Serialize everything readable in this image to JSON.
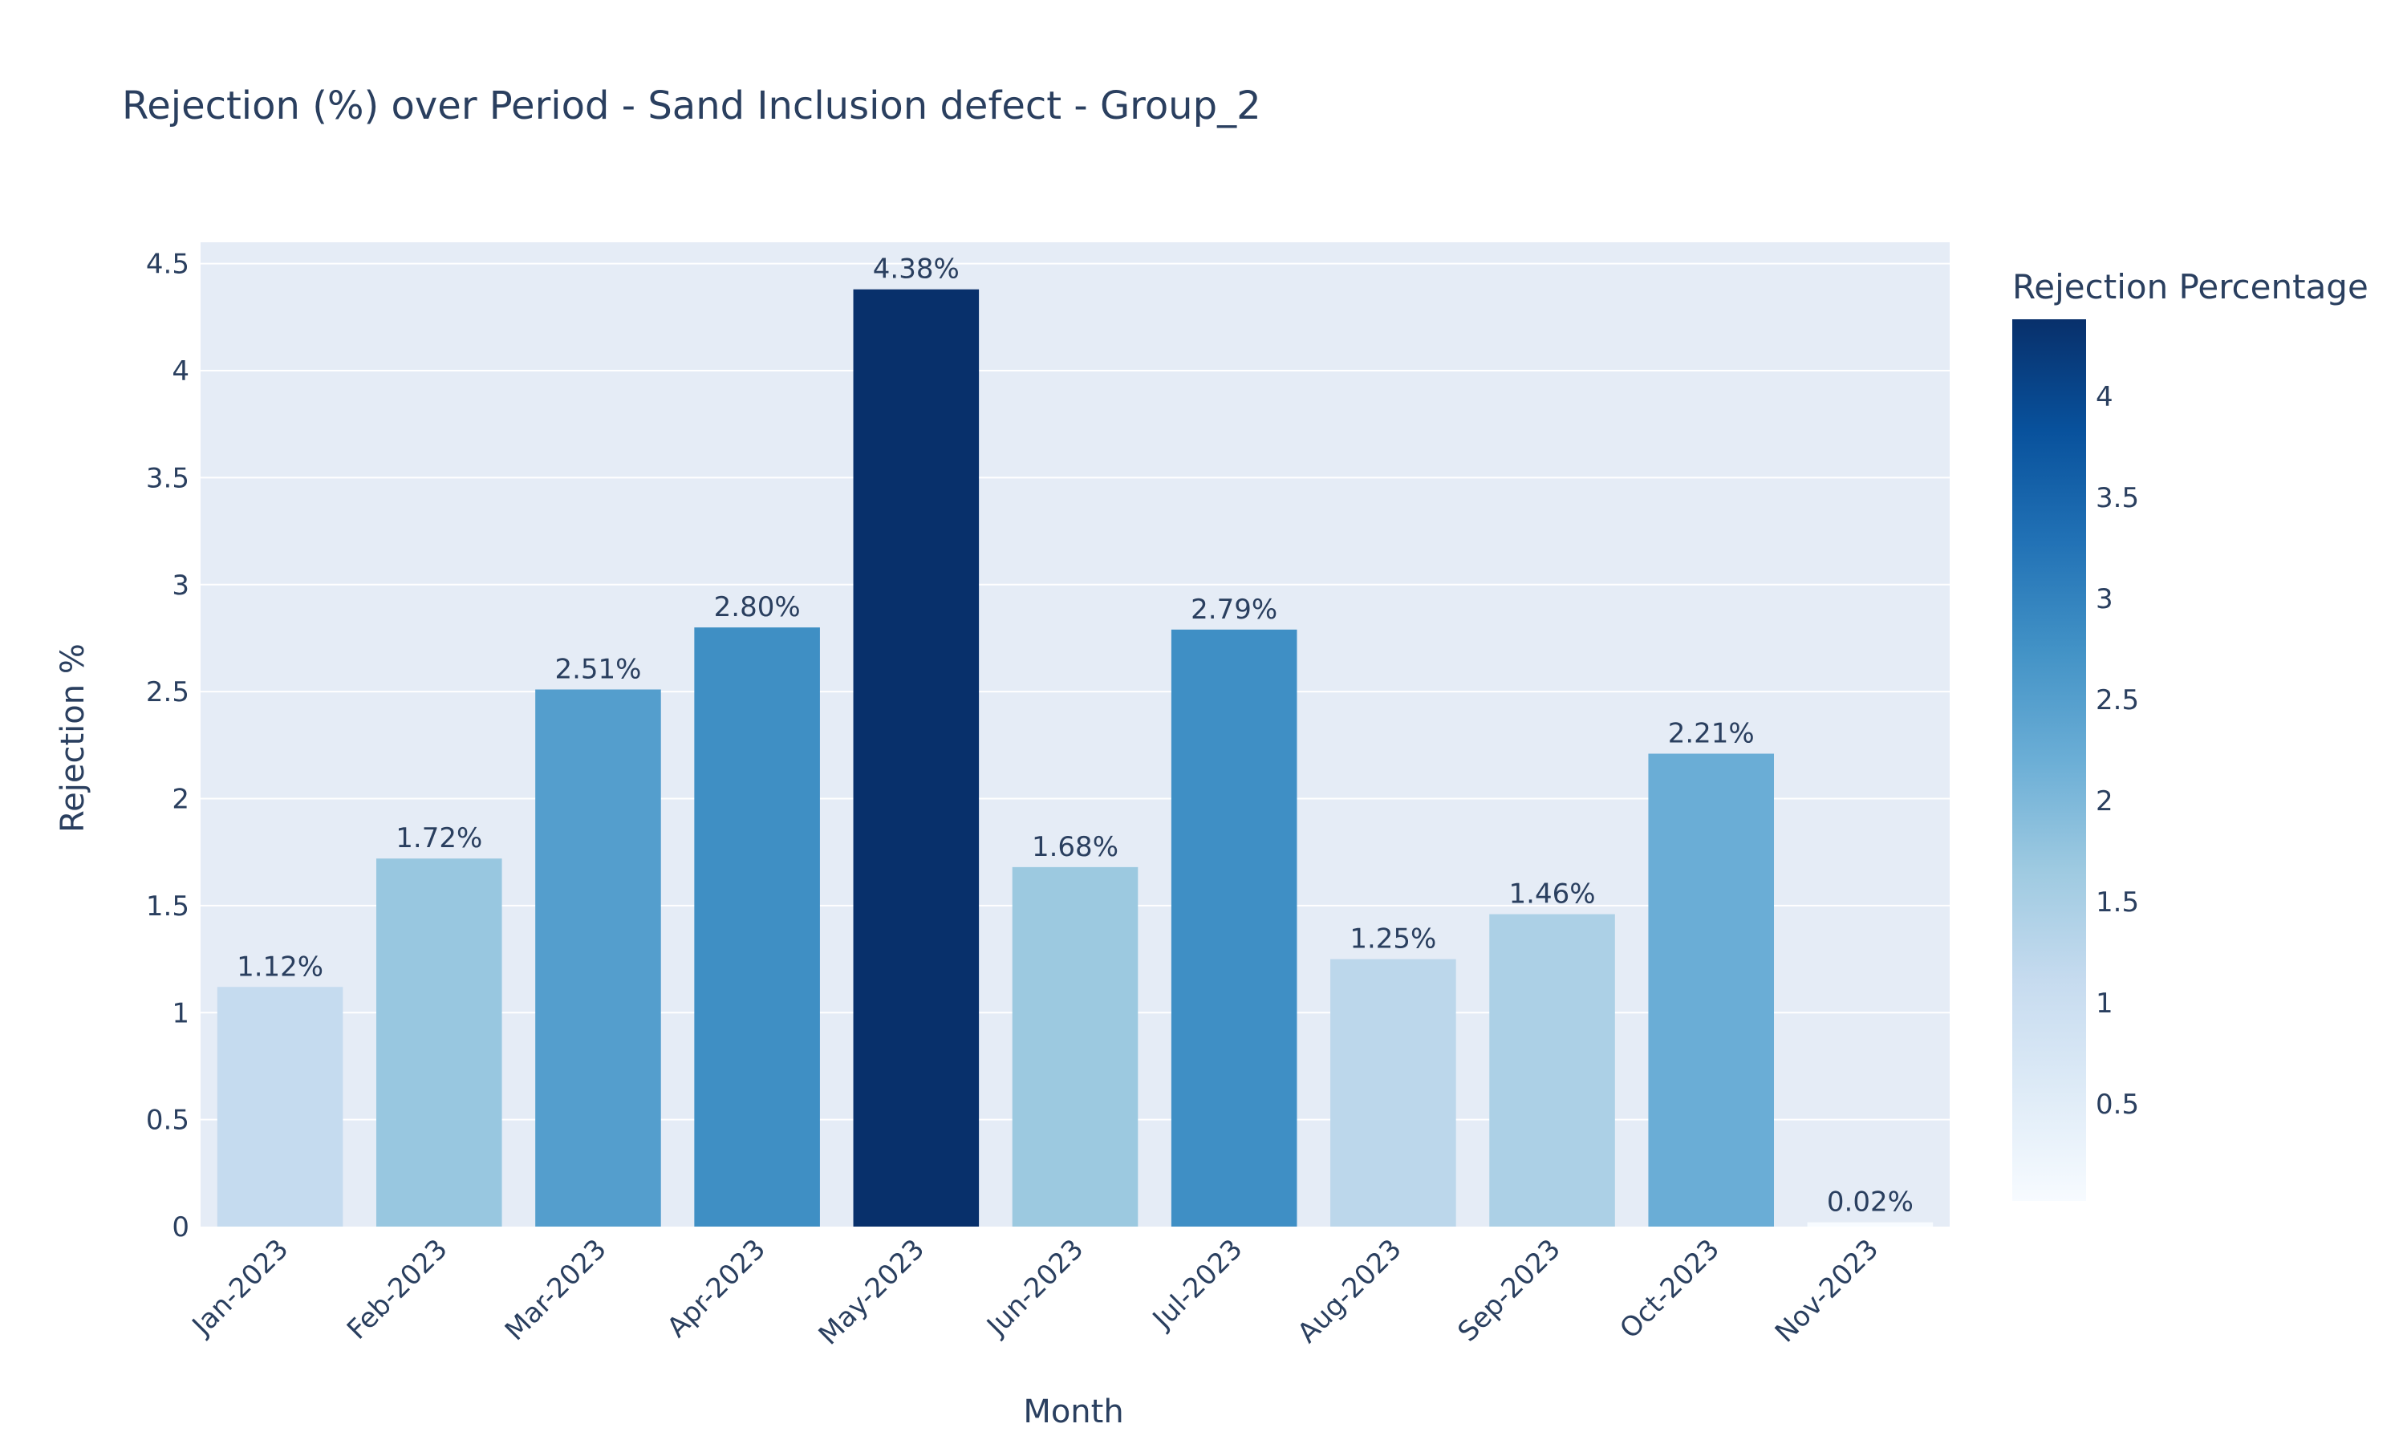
{
  "chart_data": {
    "type": "bar",
    "title": "Rejection (%) over Period - Sand Inclusion defect - Group_2",
    "xlabel": "Month",
    "ylabel": "Rejection %",
    "categories": [
      "Jan-2023",
      "Feb-2023",
      "Mar-2023",
      "Apr-2023",
      "May-2023",
      "Jun-2023",
      "Jul-2023",
      "Aug-2023",
      "Sep-2023",
      "Oct-2023",
      "Nov-2023"
    ],
    "values": [
      1.12,
      1.72,
      2.51,
      2.8,
      4.38,
      1.68,
      2.79,
      1.25,
      1.46,
      2.21,
      0.02
    ],
    "labels": [
      "1.12%",
      "1.72%",
      "2.51%",
      "2.80%",
      "4.38%",
      "1.68%",
      "2.79%",
      "1.25%",
      "1.46%",
      "2.21%",
      "0.02%"
    ],
    "ylim": [
      0,
      4.6
    ],
    "yticks": [
      0,
      0.5,
      1,
      1.5,
      2,
      2.5,
      3,
      3.5,
      4,
      4.5
    ],
    "ytick_labels": [
      "0",
      "0.5",
      "1",
      "1.5",
      "2",
      "2.5",
      "3",
      "3.5",
      "4",
      "4.5"
    ],
    "grid": true,
    "colorbar": {
      "title": "Rejection Percentage",
      "range": [
        0.02,
        4.38
      ],
      "ticks": [
        0.5,
        1,
        1.5,
        2,
        2.5,
        3,
        3.5,
        4
      ],
      "tick_labels": [
        "0.5",
        "1",
        "1.5",
        "2",
        "2.5",
        "3",
        "3.5",
        "4"
      ],
      "colorscale": [
        "#f7fbff",
        "#deebf7",
        "#c6dbef",
        "#9ecae1",
        "#6baed6",
        "#4292c6",
        "#2171b5",
        "#08519c",
        "#08306b"
      ]
    },
    "plot_background": "#e5ecf6",
    "text_color": "#2a3f5f"
  }
}
